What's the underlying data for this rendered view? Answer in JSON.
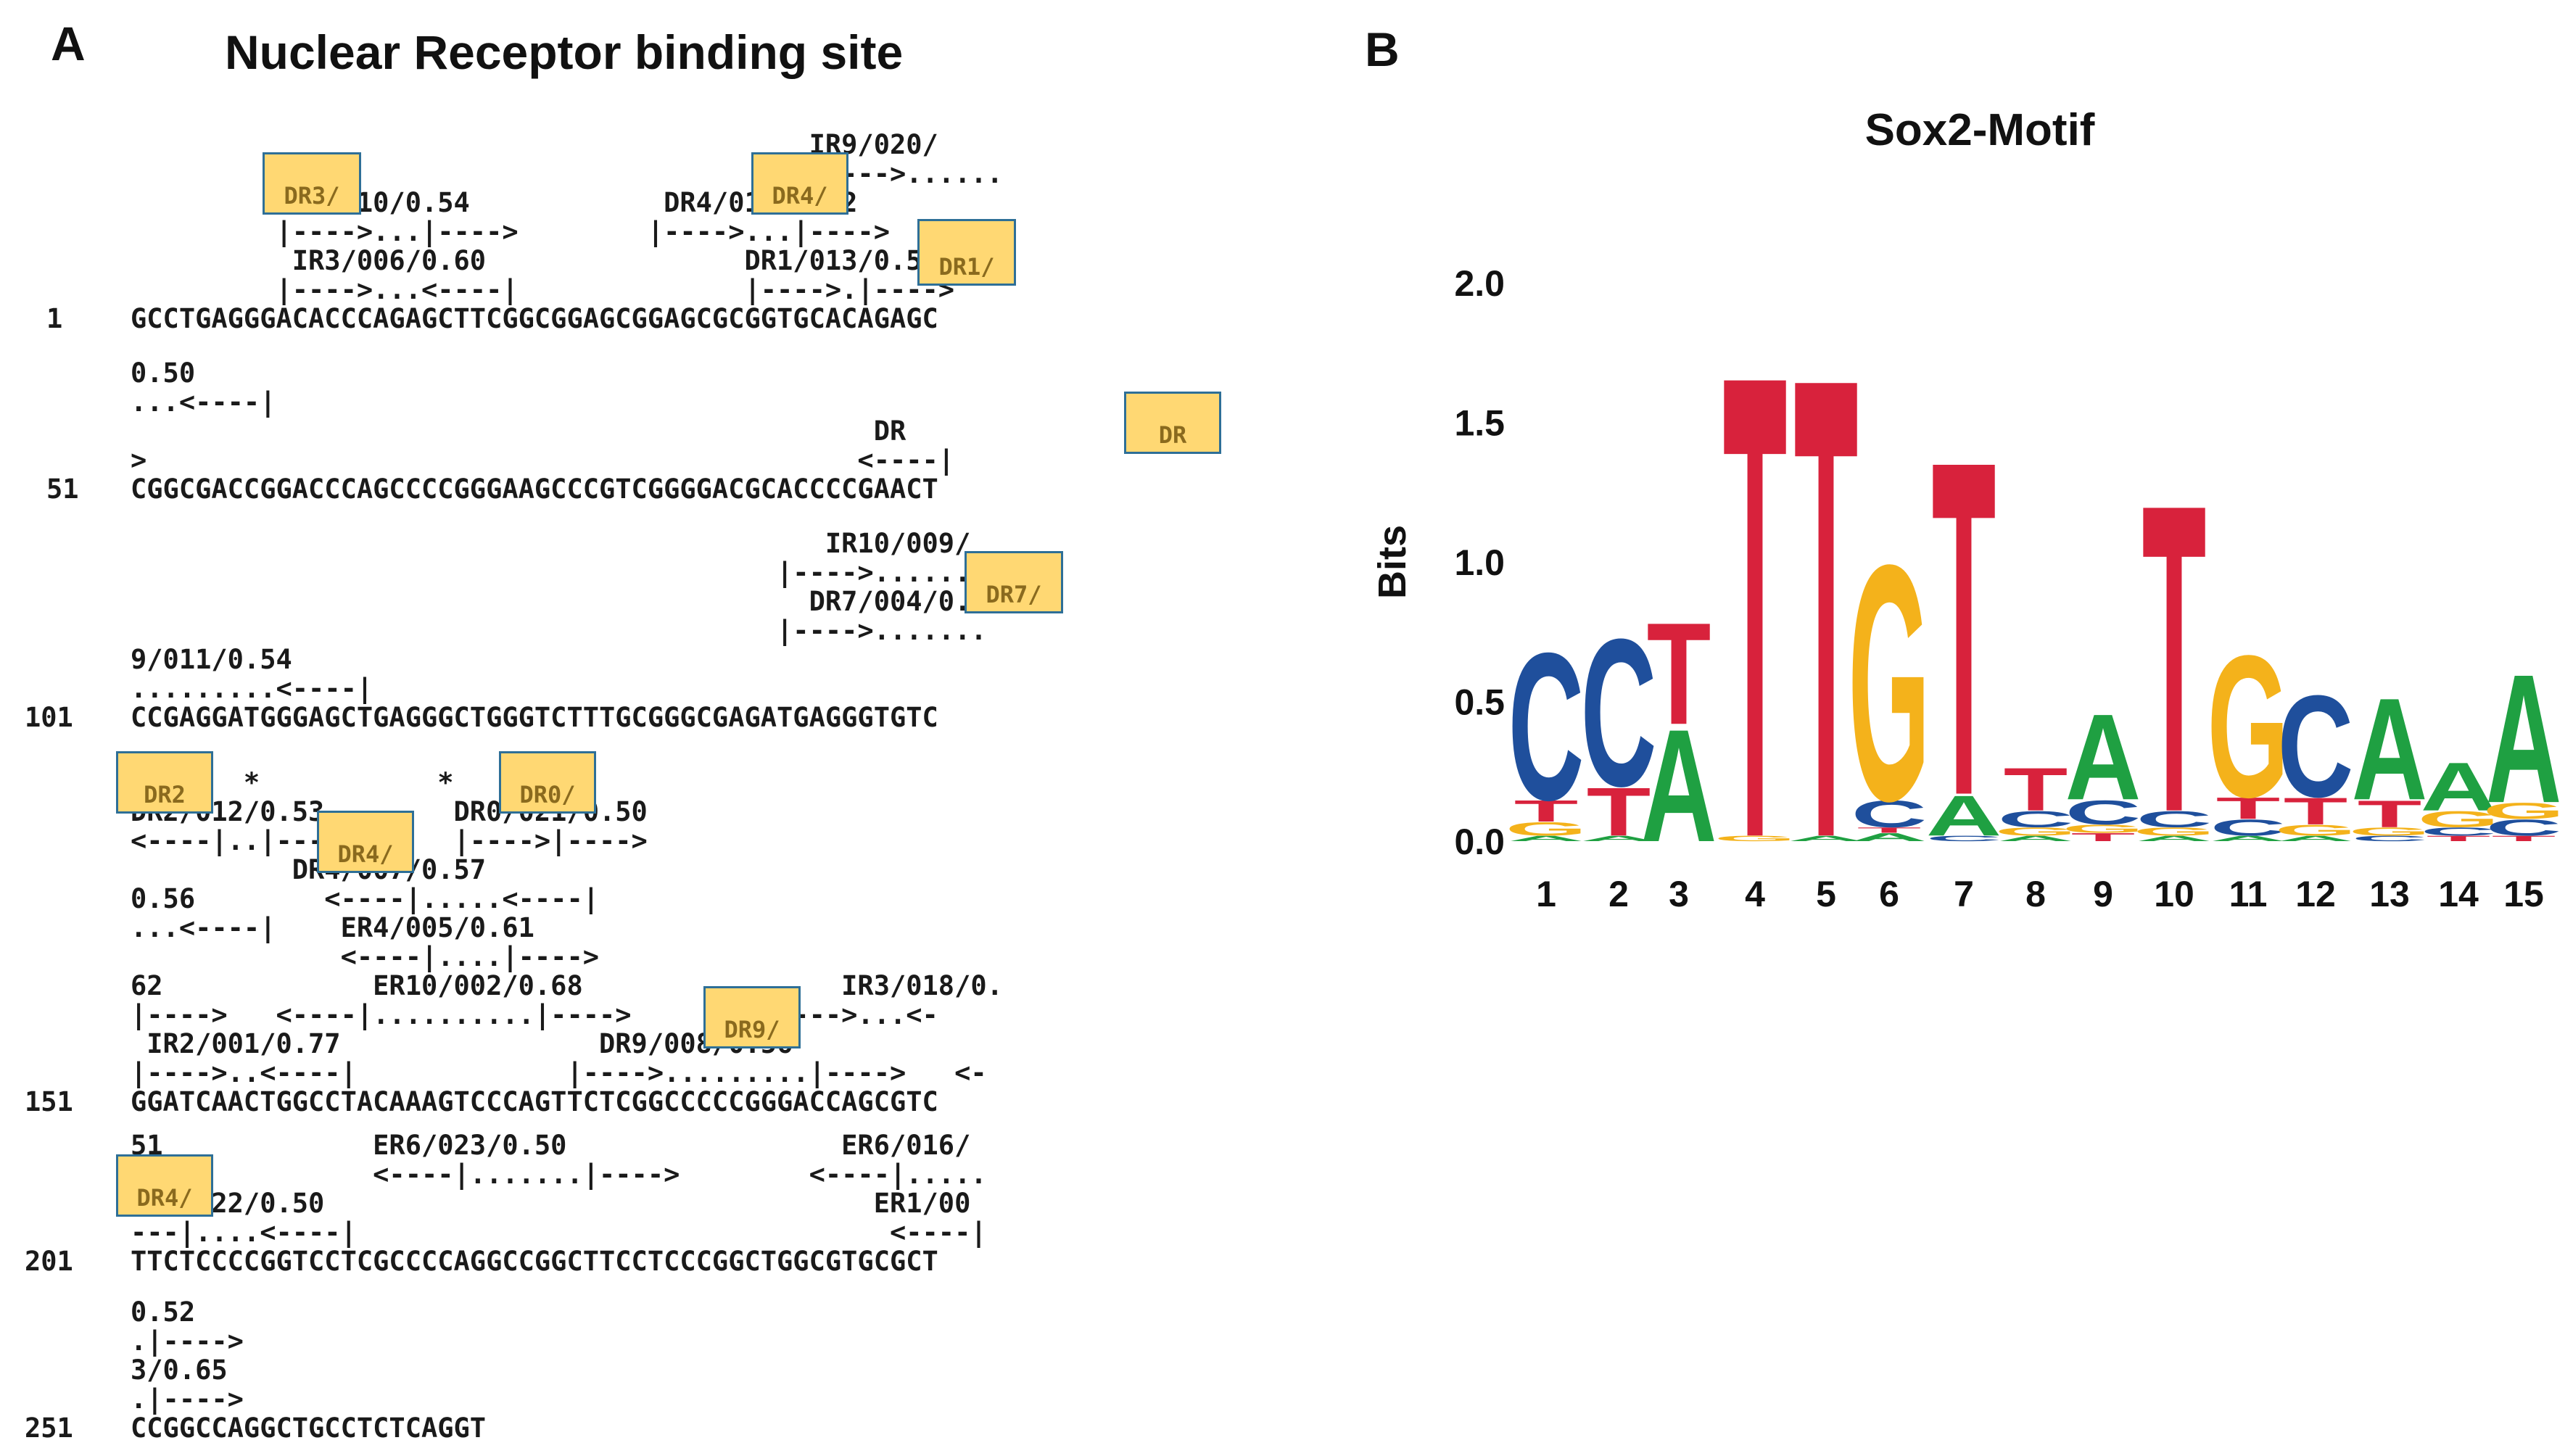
{
  "panel_a": {
    "letter": "A",
    "title": "Nuclear Receptor binding site",
    "blocks": [
      {
        "number": "1",
        "sequence": "GCCTGAGGGACACCCAGAGCTTCGGCGGAGCGGAGCGCGGTGCACAGAGC",
        "annotations": [
          "                                          IR9/020/",
          "                                          |---->......",
          "         DR3/010/0.54            DR4/017/0.52",
          "         |---->...|---->        |---->...|---->",
          "          IR3/006/0.60                DR1/013/0.53",
          "         |---->...<----|              |---->.|---->"
        ]
      },
      {
        "number": "51",
        "sequence": "CGGCGACCGGACCCAGCCCCGGGAAGCCCGTCGGGGACGCACCCCGAACT",
        "annotations": [
          "0.50",
          "...<----|",
          "                                              DR",
          ">                                            <----|"
        ]
      },
      {
        "number": "101",
        "sequence": "CCGAGGATGGGAGCTGAGGGCTGGGTCTTTGCGGGCGAGATGAGGGTGTC",
        "annotations": [
          "                                           IR10/009/",
          "                                        |---->.......",
          "                                          DR7/004/0.",
          "                                        |---->.......",
          "9/011/0.54",
          ".........<----|"
        ]
      },
      {
        "number": "151",
        "sequence": "GGATCAACTGGCCTACAAAGTCCCAGTTCTCGGCCCCCGGGACCAGCGTC",
        "annotations": [
          "       *           *",
          "DR2/012/0.53        DR0/021/0.50",
          "<----|..|---->      |---->|---->",
          "          DR4/007/0.57",
          "0.56        <----|.....<----|",
          "...<----|    ER4/005/0.61",
          "             <----|....|---->",
          "62             ER10/002/0.68                IR3/018/0.",
          "|---->   <----|..........|---->        |---->...<-",
          " IR2/001/0.77                DR9/008/0.56",
          "|---->..<----|             |---->.........|---->   <-"
        ]
      },
      {
        "number": "201",
        "sequence": "TTCTCCCCGGTCCTCGCCCCAGGCCGGCTTCCTCCCGGCTGGCGTGCGCT",
        "annotations": [
          "51             ER6/023/0.50                 ER6/016/",
          "---|           <----|.......|---->        <----|.....",
          "DR4/022/0.50                                  ER1/00",
          "---|....<----|                                 <----|"
        ]
      },
      {
        "number": "251",
        "sequence": "CCGGCCAGGCTGCCTCTCAGGT",
        "annotations": [
          "0.52",
          ".|---->",
          "3/0.65",
          ".|---->"
        ]
      }
    ],
    "highlight_labels": [
      "DR3/",
      "DR4/",
      "DR1/",
      "DR",
      "DR7/",
      "DR2",
      "DR4/",
      "DR0/",
      "DR9/",
      "DR4/"
    ],
    "highlight_color": "#ffd873",
    "highlight_border": "#2e6f97"
  },
  "panel_b": {
    "letter": "B",
    "title": "Sox2-Motif",
    "colors": {
      "A": "#1fa042",
      "C": "#1f4f9c",
      "G": "#f4b21b",
      "T": "#d8223c"
    },
    "chart_data": {
      "type": "sequence-logo",
      "title": "Sox2-Motif",
      "ylabel": "Bits",
      "xlabel": "",
      "ylim": [
        0,
        2.0
      ],
      "yticks": [
        "0.0",
        "0.5",
        "1.0",
        "1.5",
        "2.0"
      ],
      "positions": [
        "1",
        "2",
        "3",
        "4",
        "5",
        "6",
        "7",
        "8",
        "9",
        "10",
        "11",
        "12",
        "13",
        "14",
        "15"
      ],
      "stacks": [
        [
          {
            "base": "A",
            "bits": 0.02
          },
          {
            "base": "G",
            "bits": 0.05
          },
          {
            "base": "T",
            "bits": 0.08
          },
          {
            "base": "C",
            "bits": 0.55
          }
        ],
        [
          {
            "base": "A",
            "bits": 0.02
          },
          {
            "base": "T",
            "bits": 0.18
          },
          {
            "base": "C",
            "bits": 0.55
          }
        ],
        [
          {
            "base": "A",
            "bits": 0.42
          },
          {
            "base": "T",
            "bits": 0.38
          }
        ],
        [
          {
            "base": "G",
            "bits": 0.02
          },
          {
            "base": "T",
            "bits": 1.73
          }
        ],
        [
          {
            "base": "A",
            "bits": 0.02
          },
          {
            "base": "T",
            "bits": 1.72
          }
        ],
        [
          {
            "base": "A",
            "bits": 0.03
          },
          {
            "base": "T",
            "bits": 0.02
          },
          {
            "base": "C",
            "bits": 0.1
          },
          {
            "base": "G",
            "bits": 0.88
          }
        ],
        [
          {
            "base": "C",
            "bits": 0.02
          },
          {
            "base": "A",
            "bits": 0.15
          },
          {
            "base": "T",
            "bits": 1.25
          }
        ],
        [
          {
            "base": "A",
            "bits": 0.02
          },
          {
            "base": "G",
            "bits": 0.03
          },
          {
            "base": "C",
            "bits": 0.06
          },
          {
            "base": "T",
            "bits": 0.16
          }
        ],
        [
          {
            "base": "T",
            "bits": 0.03
          },
          {
            "base": "G",
            "bits": 0.03
          },
          {
            "base": "C",
            "bits": 0.09
          },
          {
            "base": "A",
            "bits": 0.32
          }
        ],
        [
          {
            "base": "A",
            "bits": 0.02
          },
          {
            "base": "G",
            "bits": 0.03
          },
          {
            "base": "C",
            "bits": 0.06
          },
          {
            "base": "T",
            "bits": 1.15
          }
        ],
        [
          {
            "base": "A",
            "bits": 0.02
          },
          {
            "base": "C",
            "bits": 0.06
          },
          {
            "base": "T",
            "bits": 0.08
          },
          {
            "base": "G",
            "bits": 0.53
          }
        ],
        [
          {
            "base": "A",
            "bits": 0.02
          },
          {
            "base": "G",
            "bits": 0.04
          },
          {
            "base": "T",
            "bits": 0.1
          },
          {
            "base": "C",
            "bits": 0.38
          }
        ],
        [
          {
            "base": "C",
            "bits": 0.02
          },
          {
            "base": "G",
            "bits": 0.03
          },
          {
            "base": "T",
            "bits": 0.1
          },
          {
            "base": "A",
            "bits": 0.38
          }
        ],
        [
          {
            "base": "T",
            "bits": 0.02
          },
          {
            "base": "C",
            "bits": 0.03
          },
          {
            "base": "G",
            "bits": 0.06
          },
          {
            "base": "A",
            "bits": 0.18
          }
        ],
        [
          {
            "base": "T",
            "bits": 0.02
          },
          {
            "base": "C",
            "bits": 0.06
          },
          {
            "base": "G",
            "bits": 0.06
          },
          {
            "base": "A",
            "bits": 0.48
          }
        ]
      ]
    }
  }
}
